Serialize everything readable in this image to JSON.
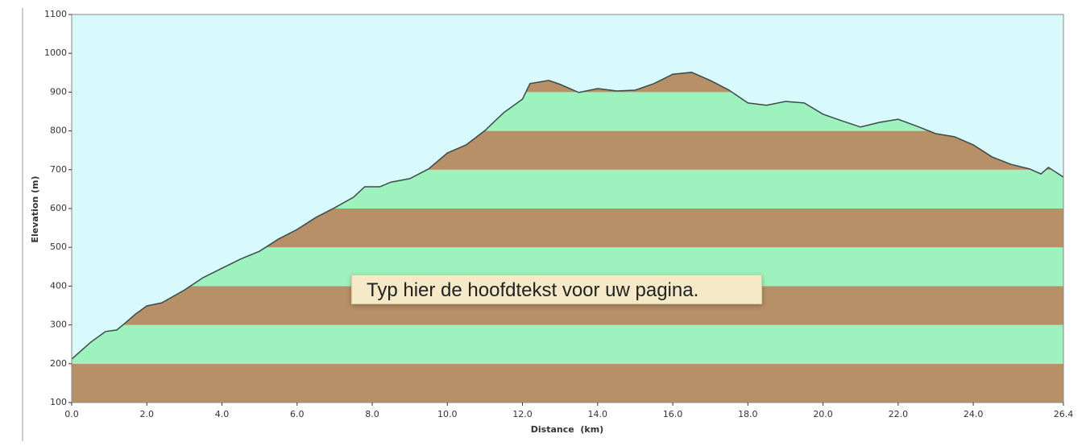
{
  "chart_data": {
    "type": "area",
    "x_label": "Distance  (km)",
    "y_label": "Elevation (m)",
    "x": [
      0,
      0.5,
      0.9,
      1.2,
      1.4,
      1.7,
      2.0,
      2.4,
      3.0,
      3.5,
      4.0,
      4.5,
      5.0,
      5.5,
      6.0,
      6.5,
      7.0,
      7.5,
      7.8,
      8.2,
      8.5,
      9.0,
      9.5,
      10.0,
      10.5,
      11.0,
      11.5,
      12.0,
      12.2,
      12.7,
      13.0,
      13.5,
      14.0,
      14.5,
      15.0,
      15.5,
      16.0,
      16.5,
      17.0,
      17.5,
      18.0,
      18.5,
      19.0,
      19.5,
      20.0,
      20.5,
      21.0,
      21.5,
      22.0,
      22.5,
      23.0,
      23.5,
      24.0,
      24.5,
      25.0,
      25.5,
      25.8,
      26.0,
      26.4
    ],
    "values": [
      212,
      255,
      283,
      287,
      303,
      328,
      349,
      357,
      390,
      422,
      446,
      470,
      490,
      521,
      546,
      577,
      602,
      629,
      656,
      656,
      668,
      677,
      702,
      743,
      764,
      801,
      847,
      882,
      922,
      930,
      920,
      899,
      909,
      903,
      905,
      922,
      946,
      951,
      930,
      905,
      872,
      866,
      876,
      872,
      843,
      826,
      810,
      822,
      830,
      812,
      793,
      785,
      764,
      733,
      714,
      702,
      689,
      706,
      681
    ],
    "xlim": [
      0,
      26.4
    ],
    "ylim": [
      100,
      1100
    ],
    "xticks": [
      {
        "value": 0,
        "label": "0.0"
      },
      {
        "value": 2,
        "label": "2.0"
      },
      {
        "value": 4,
        "label": "4.0"
      },
      {
        "value": 6,
        "label": "6.0"
      },
      {
        "value": 8,
        "label": "8.0"
      },
      {
        "value": 10,
        "label": "10.0"
      },
      {
        "value": 12,
        "label": "12.0"
      },
      {
        "value": 14,
        "label": "14.0"
      },
      {
        "value": 16,
        "label": "16.0"
      },
      {
        "value": 18,
        "label": "18.0"
      },
      {
        "value": 20,
        "label": "20.0"
      },
      {
        "value": 22,
        "label": "22.0"
      },
      {
        "value": 24,
        "label": "24.0"
      },
      26.4
    ],
    "yticks": [
      100,
      200,
      300,
      400,
      500,
      600,
      700,
      800,
      900,
      1000,
      1100
    ],
    "background": "#d9fafc",
    "band_colors": [
      "#b89068",
      "#9ef2be"
    ],
    "line_color": "#3a4a4a"
  },
  "tooltip": "Typ hier de hoofdtekst voor uw pagina."
}
